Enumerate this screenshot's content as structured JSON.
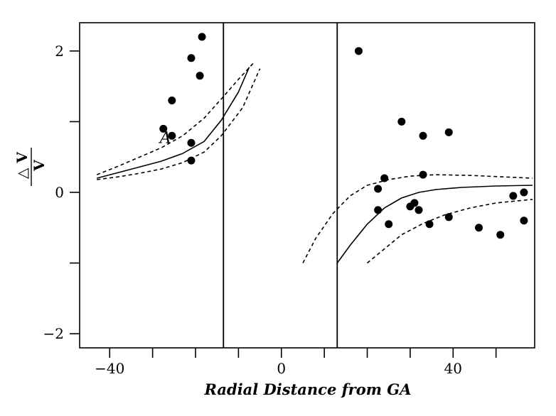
{
  "chart_data": {
    "type": "scatter",
    "title": "",
    "xlabel": "Radial Distance from GA",
    "ylabel_top": "△ V",
    "ylabel_bottom": "V",
    "xlim": [
      -47,
      59
    ],
    "ylim": [
      -2.2,
      2.4
    ],
    "x_ticks_major": [
      -40,
      0,
      40
    ],
    "x_tick_labels": [
      "−40",
      "0",
      "40"
    ],
    "x_ticks_minor": [
      -30,
      -20,
      -10,
      10,
      20,
      30,
      50
    ],
    "y_ticks": [
      -2,
      -1,
      0,
      1,
      2
    ],
    "y_tick_labels": [
      "−2",
      "",
      "0",
      "",
      "2"
    ],
    "vertical_lines": [
      -13.5,
      13
    ],
    "annotations": [
      {
        "text": "A",
        "x": -27,
        "y": 0.78
      }
    ],
    "points": [
      {
        "x": -18.5,
        "y": 2.2
      },
      {
        "x": -21,
        "y": 1.9
      },
      {
        "x": -19,
        "y": 1.65
      },
      {
        "x": -25.5,
        "y": 1.3
      },
      {
        "x": -27.5,
        "y": 0.9
      },
      {
        "x": -25.5,
        "y": 0.8
      },
      {
        "x": -21,
        "y": 0.7
      },
      {
        "x": -21,
        "y": 0.45
      },
      {
        "x": 18,
        "y": 2.0
      },
      {
        "x": 28,
        "y": 1.0
      },
      {
        "x": 33,
        "y": 0.8
      },
      {
        "x": 39,
        "y": 0.85
      },
      {
        "x": 33,
        "y": 0.25
      },
      {
        "x": 24,
        "y": 0.2
      },
      {
        "x": 22.5,
        "y": 0.05
      },
      {
        "x": 22.5,
        "y": -0.25
      },
      {
        "x": 25,
        "y": -0.45
      },
      {
        "x": 30,
        "y": -0.2
      },
      {
        "x": 31,
        "y": -0.15
      },
      {
        "x": 32,
        "y": -0.25
      },
      {
        "x": 34.5,
        "y": -0.45
      },
      {
        "x": 39,
        "y": -0.35
      },
      {
        "x": 46,
        "y": -0.5
      },
      {
        "x": 51,
        "y": -0.6
      },
      {
        "x": 54,
        "y": -0.05
      },
      {
        "x": 56.5,
        "y": 0.0
      },
      {
        "x": 56.5,
        "y": -0.4
      }
    ],
    "curves": [
      {
        "style": "solid",
        "x": [
          -43,
          -38,
          -33,
          -28,
          -23,
          -18,
          -14,
          -10,
          -7.5
        ],
        "y": [
          0.2,
          0.28,
          0.36,
          0.44,
          0.55,
          0.72,
          1.02,
          1.42,
          1.77
        ]
      },
      {
        "style": "dashed",
        "x": [
          -43,
          -38,
          -33,
          -28,
          -23,
          -18,
          -14,
          -10,
          -6.5
        ],
        "y": [
          0.25,
          0.37,
          0.5,
          0.63,
          0.8,
          1.05,
          1.32,
          1.6,
          1.83
        ]
      },
      {
        "style": "dashed",
        "x": [
          -43,
          -38,
          -33,
          -28,
          -23,
          -18,
          -14,
          -9,
          -5
        ],
        "y": [
          0.18,
          0.22,
          0.27,
          0.33,
          0.42,
          0.57,
          0.8,
          1.2,
          1.75
        ]
      },
      {
        "style": "solid",
        "x": [
          13,
          16,
          20,
          24,
          28,
          32,
          36,
          42,
          50,
          58.5
        ],
        "y": [
          -1.0,
          -0.75,
          -0.45,
          -0.22,
          -0.08,
          0.0,
          0.04,
          0.07,
          0.09,
          0.1
        ]
      },
      {
        "style": "dashed",
        "x": [
          5,
          8,
          12,
          16,
          20,
          25,
          30,
          36,
          44,
          58.5
        ],
        "y": [
          -1.0,
          -0.65,
          -0.3,
          -0.05,
          0.1,
          0.18,
          0.23,
          0.25,
          0.24,
          0.2
        ]
      },
      {
        "style": "dashed",
        "x": [
          20,
          24,
          28,
          33,
          38,
          44,
          50,
          58.5
        ],
        "y": [
          -1.0,
          -0.8,
          -0.6,
          -0.44,
          -0.32,
          -0.22,
          -0.15,
          -0.1
        ]
      }
    ]
  }
}
